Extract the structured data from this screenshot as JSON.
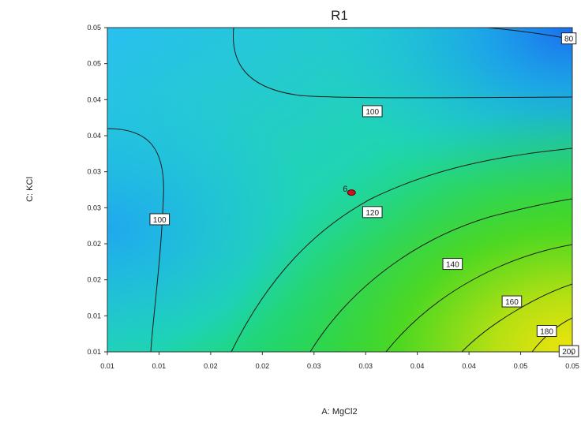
{
  "chart_data": {
    "type": "contour",
    "title": "R1",
    "xlabel": "A: MgCl2",
    "ylabel": "C: KCl",
    "x_tick_labels": [
      "0.01",
      "0.01",
      "0.02",
      "0.02",
      "0.03",
      "0.03",
      "0.04",
      "0.04",
      "0.05",
      "0.05"
    ],
    "y_tick_labels": [
      "0.01",
      "0.01",
      "0.02",
      "0.02",
      "0.03",
      "0.03",
      "0.04",
      "0.04",
      "0.05",
      "0.05"
    ],
    "contour_levels": [
      80,
      100,
      120,
      140,
      160,
      180,
      200
    ],
    "contour_labels": [
      {
        "text": "80",
        "x": 0.0497,
        "y": 0.0535
      },
      {
        "text": "100",
        "x": 0.0328,
        "y": 0.0434
      },
      {
        "text": "100",
        "x": 0.0145,
        "y": 0.0284
      },
      {
        "text": "120",
        "x": 0.0328,
        "y": 0.0294
      },
      {
        "text": "140",
        "x": 0.0397,
        "y": 0.0222
      },
      {
        "text": "160",
        "x": 0.0448,
        "y": 0.017
      },
      {
        "text": "180",
        "x": 0.0478,
        "y": 0.0129
      },
      {
        "text": "200",
        "x": 0.0497,
        "y": 0.0101
      }
    ],
    "design_point": {
      "label": "6",
      "x": 0.031,
      "y": 0.0321,
      "color": "#c8141e"
    },
    "color_scale": [
      "#1f7ff0",
      "#17c3ee",
      "#20de8c",
      "#1fd62a",
      "#efe20e"
    ],
    "grid": false,
    "legend": "none"
  }
}
